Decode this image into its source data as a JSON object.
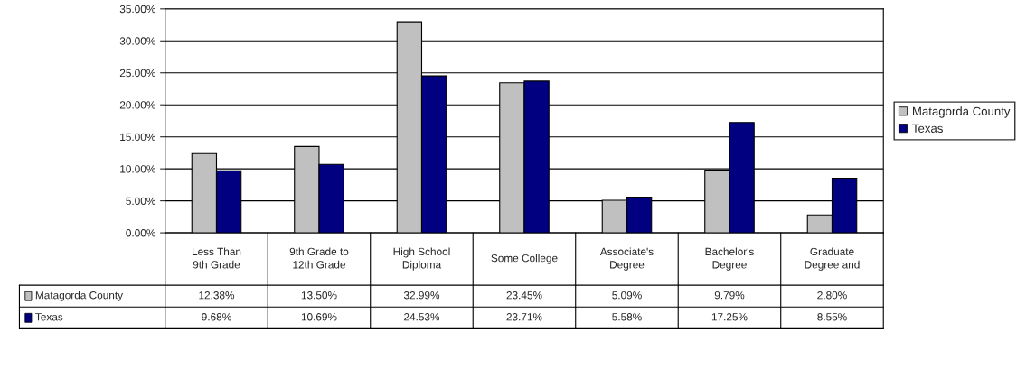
{
  "chart_data": {
    "type": "bar",
    "categories": [
      "Less Than 9th Grade",
      "9th Grade to 12th Grade",
      "High School Diploma",
      "Some College",
      "Associate's Degree",
      "Bachelor's Degree",
      "Graduate Degree and"
    ],
    "series": [
      {
        "name": "Matagorda County",
        "color": "#c0c0c0",
        "values": [
          12.38,
          13.5,
          32.99,
          23.45,
          5.09,
          9.79,
          2.8
        ],
        "value_labels": [
          "12.38%",
          "13.50%",
          "32.99%",
          "23.45%",
          "5.09%",
          "9.79%",
          "2.80%"
        ]
      },
      {
        "name": "Texas",
        "color": "#000080",
        "values": [
          9.68,
          10.69,
          24.53,
          23.71,
          5.58,
          17.25,
          8.55
        ],
        "value_labels": [
          "9.68%",
          "10.69%",
          "24.53%",
          "23.71%",
          "5.58%",
          "17.25%",
          "8.55%"
        ]
      }
    ],
    "ylim": [
      0,
      35
    ],
    "yticks": [
      {
        "value": 0,
        "label": "0.00%"
      },
      {
        "value": 5,
        "label": "5.00%"
      },
      {
        "value": 10,
        "label": "10.00%"
      },
      {
        "value": 15,
        "label": "15.00%"
      },
      {
        "value": 20,
        "label": "20.00%"
      },
      {
        "value": 25,
        "label": "25.00%"
      },
      {
        "value": 30,
        "label": "30.00%"
      },
      {
        "value": 35,
        "label": "35.00%"
      }
    ],
    "grid": "y",
    "legend": "right"
  }
}
